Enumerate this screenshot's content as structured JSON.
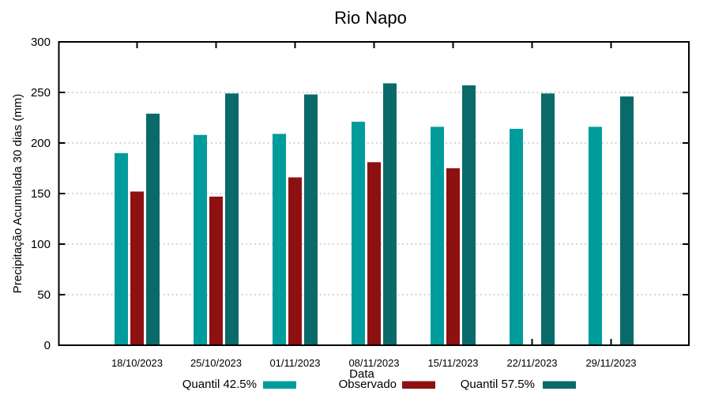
{
  "chart_data": {
    "type": "bar",
    "title": "Rio Napo",
    "xlabel": "Data",
    "ylabel": "Precipitação Acumulada 30 dias (mm)",
    "categories": [
      "18/10/2023",
      "25/10/2023",
      "01/11/2023",
      "08/11/2023",
      "15/11/2023",
      "22/11/2023",
      "29/11/2023"
    ],
    "series": [
      {
        "name": "Quantil 42.5%",
        "color": "#009c9c",
        "values": [
          190,
          208,
          209,
          221,
          216,
          214,
          216
        ]
      },
      {
        "name": "Observado",
        "color": "#8e1111",
        "values": [
          152,
          147,
          166,
          181,
          175,
          null,
          null
        ]
      },
      {
        "name": "Quantil 57.5%",
        "color": "#0a6a6a",
        "values": [
          229,
          249,
          248,
          259,
          257,
          249,
          246
        ]
      }
    ],
    "ylim": [
      0,
      300
    ],
    "yticks": [
      0,
      50,
      100,
      150,
      200,
      250,
      300
    ],
    "grid": true,
    "legend_position": "bottom"
  },
  "colors": {
    "grid": "#ababab",
    "axis_border": "#000000",
    "text": "#000000",
    "background": "#ffffff"
  }
}
